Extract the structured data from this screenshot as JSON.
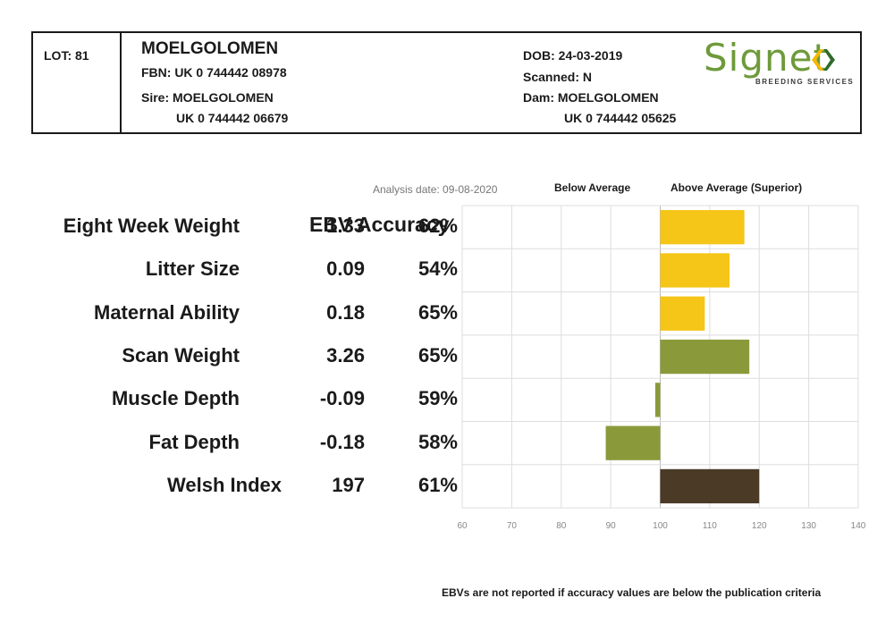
{
  "header": {
    "lot": "LOT: 81",
    "name": "MOELGOLOMEN",
    "fbn": "FBN: UK 0 744442 08978",
    "sire": "Sire: MOELGOLOMEN",
    "sire_id": "UK 0 744442 06679",
    "dob": "DOB: 24-03-2019",
    "scanned": "Scanned: N",
    "dam": "Dam: MOELGOLOMEN",
    "dam_id": "UK 0 744442 05625",
    "logo_text": "Signet",
    "logo_subtext": "BREEDING SERVICES"
  },
  "chart_header": {
    "analysis_date": "Analysis date: 09-08-2020",
    "below_average": "Below Average",
    "above_average": "Above Average (Superior)",
    "ebv_accuracy": "EBV Accuracy"
  },
  "footnote": "EBVs are not reported if accuracy values are below the publication criteria",
  "colors": {
    "terminal": "#f5c518",
    "maternal": "#8a9a3b",
    "index": "#4a3a26",
    "grid": "#dddddd",
    "logo_green": "#6e9a3a"
  },
  "chart_data": {
    "type": "bar",
    "orientation": "horizontal",
    "baseline": 100,
    "xlim": [
      60,
      140
    ],
    "xticks": [
      "60",
      "70",
      "80",
      "90",
      "100",
      "110",
      "120",
      "130",
      "140"
    ],
    "rows": [
      {
        "trait": "Eight Week Weight",
        "ebv": "1.33",
        "accuracy": "62%",
        "value": 117,
        "color": "#f5c518"
      },
      {
        "trait": "Litter Size",
        "ebv": "0.09",
        "accuracy": "54%",
        "value": 114,
        "color": "#f5c518"
      },
      {
        "trait": "Maternal Ability",
        "ebv": "0.18",
        "accuracy": "65%",
        "value": 109,
        "color": "#f5c518"
      },
      {
        "trait": "Scan Weight",
        "ebv": "3.26",
        "accuracy": "65%",
        "value": 118,
        "color": "#8a9a3b"
      },
      {
        "trait": "Muscle Depth",
        "ebv": "-0.09",
        "accuracy": "59%",
        "value": 99,
        "color": "#8a9a3b"
      },
      {
        "trait": "Fat Depth",
        "ebv": "-0.18",
        "accuracy": "58%",
        "value": 89,
        "color": "#8a9a3b"
      },
      {
        "trait": "Welsh Index",
        "ebv": "197",
        "accuracy": "61%",
        "value": 120,
        "color": "#4a3a26"
      }
    ]
  }
}
